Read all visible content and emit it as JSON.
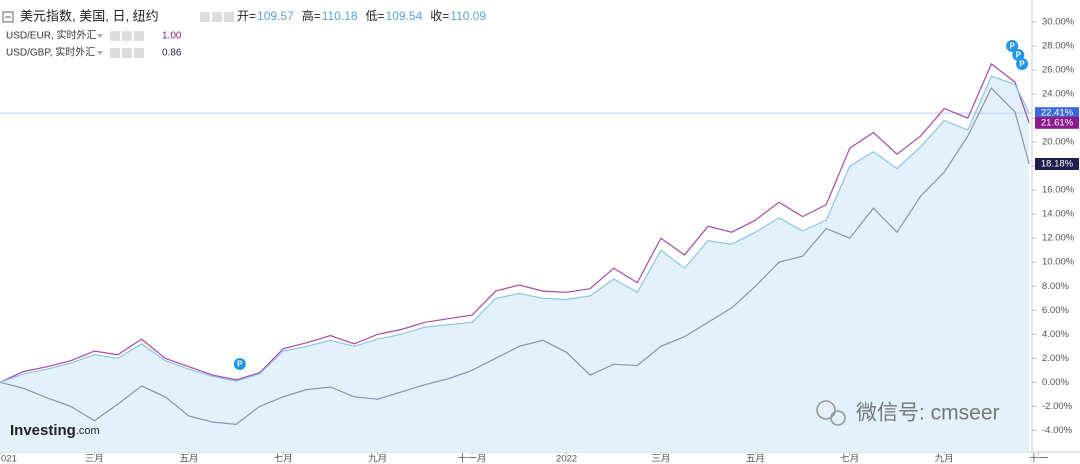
{
  "chart_data": {
    "type": "line",
    "xlim": [
      0,
      21.86
    ],
    "ylim": [
      -5.8,
      31
    ],
    "xticks": [
      {
        "value": 0,
        "label": "021"
      },
      {
        "value": 2,
        "label": "三月"
      },
      {
        "value": 4,
        "label": "五月"
      },
      {
        "value": 6,
        "label": "七月"
      },
      {
        "value": 8,
        "label": "九月"
      },
      {
        "value": 10,
        "label": "十一月"
      },
      {
        "value": 12,
        "label": "2022"
      },
      {
        "value": 14,
        "label": "三月"
      },
      {
        "value": 16,
        "label": "五月"
      },
      {
        "value": 18,
        "label": "七月"
      },
      {
        "value": 20,
        "label": "九月"
      },
      {
        "value": 22,
        "label": "十一"
      }
    ],
    "yticks": [
      {
        "value": -4,
        "label": "-4.00%"
      },
      {
        "value": -2,
        "label": "-2.00%"
      },
      {
        "value": 0,
        "label": "0.00%"
      },
      {
        "value": 2,
        "label": "2.00%"
      },
      {
        "value": 4,
        "label": "4.00%"
      },
      {
        "value": 6,
        "label": "6.00%"
      },
      {
        "value": 8,
        "label": "8.00%"
      },
      {
        "value": 10,
        "label": "10.00%"
      },
      {
        "value": 12,
        "label": "12.00%"
      },
      {
        "value": 14,
        "label": "14.00%"
      },
      {
        "value": 16,
        "label": "16.00%"
      },
      {
        "value": 18,
        "label": "18.00%"
      },
      {
        "value": 20,
        "label": "20.00%"
      },
      {
        "value": 22,
        "label": "22.00%"
      },
      {
        "value": 24,
        "label": "24.00%"
      },
      {
        "value": 26,
        "label": "26.00%"
      },
      {
        "value": 28,
        "label": "28.00%"
      },
      {
        "value": 30,
        "label": "30.00%"
      }
    ],
    "grid": false,
    "ohlc": [
      {
        "label": "开=",
        "value": 109.57
      },
      {
        "label": "高=",
        "value": 110.18
      },
      {
        "label": "低=",
        "value": 109.54
      },
      {
        "label": "收=",
        "value": 110.09
      }
    ],
    "x": [
      0,
      0.5,
      1,
      1.5,
      2,
      2.5,
      3,
      3.5,
      4,
      4.5,
      5,
      5.5,
      6,
      6.5,
      7,
      7.5,
      8,
      8.5,
      9,
      9.5,
      10,
      10.5,
      11,
      11.5,
      12,
      12.5,
      13,
      13.5,
      14,
      14.5,
      15,
      15.5,
      16,
      16.5,
      17,
      17.5,
      18,
      18.5,
      19,
      19.5,
      20,
      20.5,
      21,
      21.5,
      21.8
    ],
    "series": [
      {
        "name": "美元指数, 美国, 日, 纽约",
        "color": "#8cc4ec",
        "fill": "#e3f1fb",
        "badge_color": "#3d68d8",
        "last_value_label": "22.41%",
        "values": [
          0,
          0.7,
          1.1,
          1.6,
          2.3,
          2.0,
          3.2,
          1.8,
          1.1,
          0.5,
          0.1,
          0.7,
          2.6,
          3.0,
          3.5,
          3.0,
          3.6,
          4.0,
          4.6,
          4.8,
          5.0,
          7.0,
          7.4,
          7.0,
          6.9,
          7.2,
          8.6,
          7.5,
          11.0,
          9.5,
          11.8,
          11.5,
          12.5,
          13.7,
          12.6,
          13.5,
          18.0,
          19.2,
          17.8,
          19.6,
          21.8,
          21.0,
          25.5,
          24.8,
          22.41
        ]
      },
      {
        "name": "USD/EUR, 实时外汇",
        "legend_value": "1.00",
        "color": "#a64aa6",
        "badge_color": "#8b1a8b",
        "last_value_label": "21.61%",
        "values": [
          0,
          0.9,
          1.3,
          1.8,
          2.6,
          2.3,
          3.6,
          2.0,
          1.3,
          0.6,
          0.2,
          0.8,
          2.8,
          3.3,
          3.9,
          3.2,
          4.0,
          4.4,
          5.0,
          5.3,
          5.6,
          7.6,
          8.1,
          7.6,
          7.5,
          7.8,
          9.5,
          8.3,
          12.0,
          10.6,
          13.0,
          12.5,
          13.5,
          15.0,
          13.8,
          14.8,
          19.5,
          20.8,
          19.0,
          20.5,
          22.8,
          22.0,
          26.5,
          25.0,
          21.61
        ]
      },
      {
        "name": "USD/GBP, 实时外汇",
        "legend_value": "0.86",
        "color": "#8b93ad",
        "badge_color": "#1e1e4e",
        "last_value_label": "18.18%",
        "values": [
          0,
          -0.5,
          -1.3,
          -2.0,
          -3.2,
          -1.8,
          -0.3,
          -1.2,
          -2.8,
          -3.3,
          -3.5,
          -2.0,
          -1.2,
          -0.6,
          -0.4,
          -1.2,
          -1.4,
          -0.8,
          -0.2,
          0.3,
          1.0,
          2.0,
          3.0,
          3.5,
          2.5,
          0.6,
          1.5,
          1.4,
          3.0,
          3.8,
          5.0,
          6.2,
          8.0,
          10.0,
          10.5,
          12.8,
          12.0,
          14.5,
          12.5,
          15.5,
          17.5,
          20.5,
          24.5,
          22.5,
          18.18
        ]
      }
    ],
    "events": [
      {
        "x": 5.08,
        "label": "P"
      },
      {
        "x": 21.44,
        "label": "P"
      },
      {
        "x": 21.57,
        "label": "P"
      },
      {
        "x": 21.65,
        "label": "P"
      }
    ],
    "brand": [
      "Investing",
      ".com"
    ],
    "wechat": "微信号: cmseer"
  }
}
